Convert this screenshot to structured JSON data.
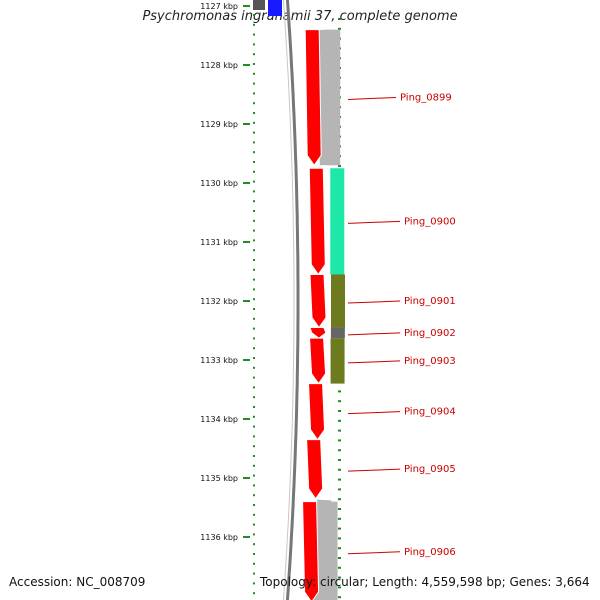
{
  "title": "Psychromonas ingrahamii 37, complete genome",
  "footer": {
    "accession": "Accession: NC_008709",
    "topology": "Topology: circular; Length: 4,559,598 bp; Genes: 3,664"
  },
  "position_labels": [
    "1127 kbp",
    "1128 kbp",
    "1129 kbp",
    "1130 kbp",
    "1131 kbp",
    "1132 kbp",
    "1133 kbp",
    "1134 kbp",
    "1135 kbp",
    "1136 kbp"
  ],
  "colors": {
    "gene": "#ff0000",
    "backbone": "#777777",
    "tick": "#228b22",
    "label": "#cc0000",
    "cog_gray": "#b5b5b5",
    "cog_cyan": "#1ee8a8",
    "cog_olive": "#6e7a1e",
    "cog_darkgray": "#666666",
    "cog_blue": "#1a1aff"
  },
  "genes": [
    {
      "name": "Ping_0899",
      "start_kbp": 1127.4,
      "end_kbp": 1129.7,
      "cog_color": "#b5b5b5"
    },
    {
      "name": "Ping_0900",
      "start_kbp": 1129.75,
      "end_kbp": 1131.55,
      "cog_color": "#1ee8a8"
    },
    {
      "name": "Ping_0901",
      "start_kbp": 1131.55,
      "end_kbp": 1132.45,
      "cog_color": "#6e7a1e"
    },
    {
      "name": "Ping_0902",
      "start_kbp": 1132.45,
      "end_kbp": 1132.63,
      "cog_color": "#666666"
    },
    {
      "name": "Ping_0903",
      "start_kbp": 1132.63,
      "end_kbp": 1133.4,
      "cog_color": "#6e7a1e"
    },
    {
      "name": "Ping_0904",
      "start_kbp": 1133.4,
      "end_kbp": 1134.35,
      "cog_color": ""
    },
    {
      "name": "Ping_0905",
      "start_kbp": 1134.35,
      "end_kbp": 1135.35,
      "cog_color": ""
    },
    {
      "name": "Ping_0906",
      "start_kbp": 1135.4,
      "end_kbp": 1137.1,
      "cog_color": "#b5b5b5"
    }
  ]
}
